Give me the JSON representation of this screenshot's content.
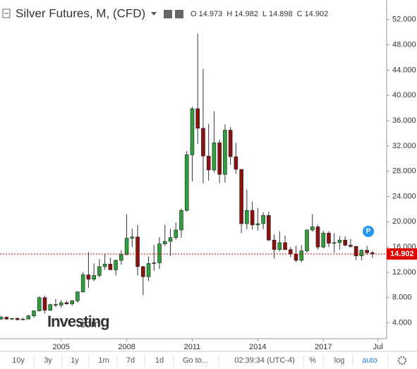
{
  "chart_data": {
    "type": "candlestick",
    "title": "Silver Futures, M, (CFD)",
    "ohlc": [
      {
        "label": "O",
        "value": 14.973
      },
      {
        "label": "H",
        "value": 14.982
      },
      {
        "label": "L",
        "value": 14.898
      },
      {
        "label": "C",
        "value": 14.902
      }
    ],
    "last_price": 14.902,
    "badge": "P",
    "watermark": {
      "brand": "Investing",
      "suffix": ".com"
    },
    "up_color": "#2e9e3e",
    "down_color": "#8b1010",
    "x": [
      2002.25,
      2002.5,
      2002.75,
      2003.0,
      2003.25,
      2003.5,
      2003.75,
      2004.0,
      2004.25,
      2004.5,
      2004.75,
      2005.0,
      2005.25,
      2005.5,
      2005.75,
      2006.0,
      2006.25,
      2006.5,
      2006.75,
      2007.0,
      2007.25,
      2007.5,
      2007.75,
      2008.0,
      2008.25,
      2008.5,
      2008.75,
      2009.0,
      2009.25,
      2009.5,
      2009.75,
      2010.0,
      2010.25,
      2010.5,
      2010.75,
      2011.0,
      2011.25,
      2011.5,
      2011.75,
      2012.0,
      2012.25,
      2012.5,
      2012.75,
      2013.0,
      2013.25,
      2013.5,
      2013.75,
      2014.0,
      2014.25,
      2014.5,
      2014.75,
      2015.0,
      2015.25,
      2015.5,
      2015.75,
      2016.0,
      2016.25,
      2016.5,
      2016.75,
      2017.0,
      2017.25,
      2017.5,
      2017.75,
      2018.0,
      2018.25,
      2018.5,
      2018.75,
      2019.0,
      2019.25
    ],
    "open": [
      4.6,
      4.9,
      4.6,
      4.7,
      4.5,
      4.6,
      5.1,
      5.9,
      8.0,
      6.0,
      6.9,
      6.8,
      7.2,
      7.0,
      7.5,
      8.9,
      11.6,
      10.9,
      11.5,
      12.9,
      13.3,
      12.4,
      13.9,
      14.8,
      17.4,
      17.6,
      12.9,
      11.3,
      13.4,
      13.5,
      16.5,
      16.9,
      17.5,
      18.7,
      21.8,
      30.6,
      37.9,
      34.8,
      30.4,
      28.2,
      32.5,
      27.5,
      34.5,
      30.3,
      28.3,
      19.7,
      21.8,
      19.5,
      19.7,
      21.0,
      17.1,
      15.6,
      16.7,
      15.6,
      14.9,
      13.9,
      15.4,
      18.7,
      19.2,
      16.0,
      18.2,
      16.6,
      16.7,
      17.1,
      16.3,
      16.1,
      14.6,
      15.5,
      15.1
    ],
    "high": [
      5.1,
      5.0,
      4.8,
      4.9,
      4.8,
      5.3,
      6.0,
      8.2,
      8.3,
      7.0,
      7.8,
      7.6,
      7.5,
      7.6,
      9.0,
      12.0,
      15.2,
      13.4,
      14.1,
      14.9,
      14.3,
      14.0,
      15.5,
      21.2,
      18.9,
      19.5,
      13.0,
      14.5,
      16.3,
      17.6,
      19.5,
      18.9,
      19.9,
      22.1,
      31.2,
      38.2,
      49.8,
      44.2,
      35.5,
      37.5,
      33.0,
      35.4,
      35.0,
      32.5,
      28.3,
      25.1,
      23.2,
      22.2,
      21.5,
      21.6,
      18.0,
      18.5,
      17.8,
      16.0,
      16.2,
      16.3,
      18.8,
      21.2,
      19.5,
      18.6,
      18.5,
      18.2,
      17.7,
      17.7,
      17.3,
      16.2,
      15.6,
      16.2,
      15.4
    ],
    "low": [
      4.5,
      4.5,
      4.5,
      4.4,
      4.4,
      4.6,
      4.8,
      5.8,
      5.5,
      5.9,
      6.5,
      6.4,
      6.9,
      6.7,
      7.2,
      8.8,
      9.5,
      10.6,
      11.2,
      12.4,
      12.4,
      11.5,
      13.2,
      14.7,
      16.0,
      11.5,
      8.4,
      10.6,
      12.2,
      12.5,
      16.2,
      14.6,
      17.2,
      17.5,
      21.6,
      26.4,
      32.3,
      26.1,
      26.5,
      27.8,
      26.1,
      26.2,
      29.0,
      27.6,
      18.2,
      18.8,
      18.8,
      18.6,
      18.8,
      17.0,
      14.2,
      15.3,
      15.5,
      14.4,
      13.6,
      13.6,
      15.1,
      18.4,
      15.6,
      15.8,
      16.0,
      15.1,
      15.6,
      16.1,
      15.9,
      13.9,
      13.9,
      14.8,
      14.3
    ],
    "close": [
      4.9,
      4.6,
      4.7,
      4.5,
      4.6,
      5.1,
      5.9,
      8.0,
      6.0,
      6.9,
      6.8,
      7.2,
      7.0,
      7.5,
      8.9,
      11.6,
      10.9,
      11.5,
      12.9,
      13.3,
      12.4,
      13.9,
      14.8,
      17.4,
      17.6,
      12.9,
      11.3,
      13.4,
      13.5,
      16.5,
      16.9,
      17.5,
      18.7,
      21.8,
      30.6,
      37.9,
      34.8,
      30.4,
      28.2,
      32.5,
      27.5,
      34.5,
      30.3,
      28.3,
      19.7,
      21.8,
      19.5,
      19.7,
      21.0,
      17.1,
      15.6,
      16.7,
      15.6,
      14.9,
      13.9,
      15.4,
      18.7,
      19.2,
      16.0,
      18.2,
      16.6,
      16.7,
      17.1,
      16.3,
      16.1,
      14.6,
      15.5,
      15.1,
      14.9
    ],
    "xlim": [
      2002.2,
      2019.9
    ],
    "xticks": [
      2005,
      2008,
      2011,
      2014,
      2017,
      {
        "value": 2019.5,
        "label": "Jul"
      }
    ],
    "ylim": [
      1.5,
      55.1
    ],
    "yticks": [
      {
        "value": 4,
        "label": "4.000"
      },
      {
        "value": 8,
        "label": "8.000"
      },
      {
        "value": 12,
        "label": "12.000"
      },
      {
        "value": 16,
        "label": "16.000"
      },
      {
        "value": 20,
        "label": "20.000"
      },
      {
        "value": 24,
        "label": "24.000"
      },
      {
        "value": 28,
        "label": "28.000"
      },
      {
        "value": 32,
        "label": "32.000"
      },
      {
        "value": 36,
        "label": "36.000"
      },
      {
        "value": 40,
        "label": "40.000"
      },
      {
        "value": 44,
        "label": "44.000"
      },
      {
        "value": 48,
        "label": "48.000"
      },
      {
        "value": 52,
        "label": "52.000"
      }
    ],
    "grid": false,
    "toolbar": {
      "ranges": [
        "10y",
        "3y",
        "1y",
        "1m",
        "7d",
        "1d"
      ],
      "goto": "Go to...",
      "time": "02:39:34 (UTC-4)",
      "options": [
        "%",
        "log",
        "auto"
      ]
    }
  }
}
